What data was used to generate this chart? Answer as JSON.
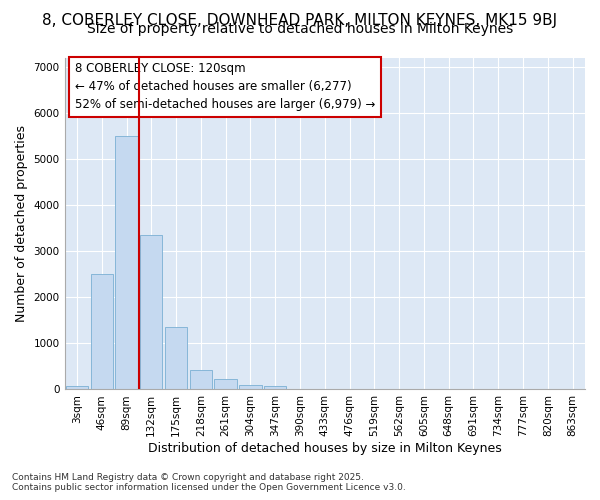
{
  "title_line1": "8, COBERLEY CLOSE, DOWNHEAD PARK, MILTON KEYNES, MK15 9BJ",
  "title_line2": "Size of property relative to detached houses in Milton Keynes",
  "xlabel": "Distribution of detached houses by size in Milton Keynes",
  "ylabel": "Number of detached properties",
  "categories": [
    "3sqm",
    "46sqm",
    "89sqm",
    "132sqm",
    "175sqm",
    "218sqm",
    "261sqm",
    "304sqm",
    "347sqm",
    "390sqm",
    "433sqm",
    "476sqm",
    "519sqm",
    "562sqm",
    "605sqm",
    "648sqm",
    "691sqm",
    "734sqm",
    "777sqm",
    "820sqm",
    "863sqm"
  ],
  "values": [
    70,
    2500,
    5500,
    3350,
    1350,
    430,
    220,
    100,
    70,
    0,
    0,
    0,
    0,
    0,
    0,
    0,
    0,
    0,
    0,
    0,
    0
  ],
  "bar_color": "#c5d9f0",
  "bar_edge_color": "#7aafd4",
  "vline_x": 2.5,
  "vline_color": "#cc0000",
  "annotation_text": "8 COBERLEY CLOSE: 120sqm\n← 47% of detached houses are smaller (6,277)\n52% of semi-detached houses are larger (6,979) →",
  "annotation_box_facecolor": "#ffffff",
  "annotation_box_edgecolor": "#cc0000",
  "ylim": [
    0,
    7200
  ],
  "yticks": [
    0,
    1000,
    2000,
    3000,
    4000,
    5000,
    6000,
    7000
  ],
  "bg_color": "#ffffff",
  "plot_bg_color": "#dde8f5",
  "grid_color": "#ffffff",
  "footer_text": "Contains HM Land Registry data © Crown copyright and database right 2025.\nContains public sector information licensed under the Open Government Licence v3.0.",
  "title1_fontsize": 11,
  "title2_fontsize": 10,
  "xlabel_fontsize": 9,
  "ylabel_fontsize": 9,
  "tick_fontsize": 7.5,
  "annotation_fontsize": 8.5,
  "footer_fontsize": 6.5
}
